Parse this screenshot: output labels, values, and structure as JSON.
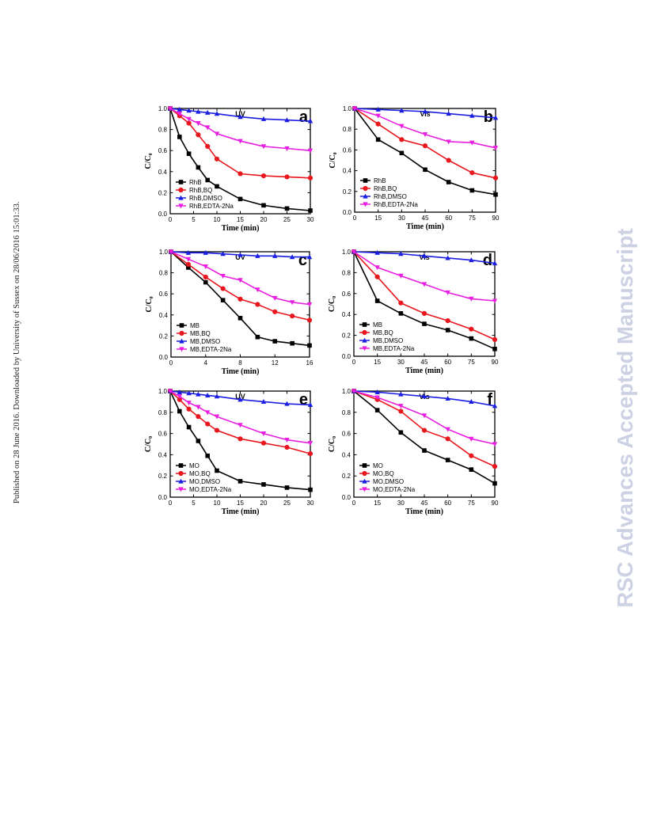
{
  "sidebar_note": "Published on 28 June 2016. Downloaded by University of Sussex on 28/06/2016 15:01:33.",
  "watermark": "RSC Advances Accepted Manuscript",
  "series_colors": [
    "#000000",
    "#e8161d",
    "#1a1ee0",
    "#e81fe0"
  ],
  "series_markers": [
    "square",
    "circle",
    "triangle-up",
    "triangle-down"
  ],
  "chart_data": [
    {
      "type": "line",
      "panel": "a",
      "mode": "UV",
      "xlabel": "Time (min)",
      "ylabel": "C/C₀",
      "xlim": [
        0,
        30
      ],
      "ylim": [
        0,
        1.0
      ],
      "xticks": [
        0,
        5,
        10,
        15,
        20,
        25,
        30
      ],
      "yticks": [
        0.0,
        0.2,
        0.4,
        0.6,
        0.8,
        1.0
      ],
      "legend_position": "bottom-left",
      "series": [
        {
          "name": "RhB",
          "x": [
            0,
            2,
            4,
            6,
            8,
            10,
            15,
            20,
            25,
            30
          ],
          "y": [
            1.0,
            0.73,
            0.57,
            0.44,
            0.32,
            0.26,
            0.14,
            0.08,
            0.05,
            0.03
          ]
        },
        {
          "name": "RhB,BQ",
          "x": [
            0,
            2,
            4,
            6,
            8,
            10,
            15,
            20,
            25,
            30
          ],
          "y": [
            1.0,
            0.93,
            0.86,
            0.75,
            0.64,
            0.52,
            0.38,
            0.36,
            0.35,
            0.34
          ]
        },
        {
          "name": "RhB,DMSO",
          "x": [
            0,
            2,
            4,
            6,
            8,
            10,
            15,
            20,
            25,
            30
          ],
          "y": [
            1.0,
            0.99,
            0.98,
            0.97,
            0.96,
            0.95,
            0.92,
            0.9,
            0.89,
            0.88
          ]
        },
        {
          "name": "RhB,EDTA-2Na",
          "x": [
            0,
            2,
            4,
            6,
            8,
            10,
            15,
            20,
            25,
            30
          ],
          "y": [
            1.0,
            0.95,
            0.9,
            0.86,
            0.82,
            0.76,
            0.69,
            0.64,
            0.62,
            0.6
          ]
        }
      ]
    },
    {
      "type": "line",
      "panel": "b",
      "mode": "Vis",
      "xlabel": "Time (min)",
      "ylabel": "C/C₀",
      "xlim": [
        0,
        90
      ],
      "ylim": [
        0,
        1.0
      ],
      "xticks": [
        0,
        15,
        30,
        45,
        60,
        75,
        90
      ],
      "yticks": [
        0.0,
        0.2,
        0.4,
        0.6,
        0.8,
        1.0
      ],
      "legend_position": "bottom-left",
      "series": [
        {
          "name": "RhB",
          "x": [
            0,
            15,
            30,
            45,
            60,
            75,
            90
          ],
          "y": [
            1.0,
            0.7,
            0.57,
            0.41,
            0.29,
            0.21,
            0.17
          ]
        },
        {
          "name": "RhB,BQ",
          "x": [
            0,
            15,
            30,
            45,
            60,
            75,
            90
          ],
          "y": [
            1.0,
            0.85,
            0.7,
            0.64,
            0.5,
            0.38,
            0.33
          ]
        },
        {
          "name": "RhB,DMSO",
          "x": [
            0,
            15,
            30,
            45,
            60,
            75,
            90
          ],
          "y": [
            1.0,
            0.99,
            0.98,
            0.97,
            0.95,
            0.93,
            0.91
          ]
        },
        {
          "name": "RhB,EDTA-2Na",
          "x": [
            0,
            15,
            30,
            45,
            60,
            75,
            90
          ],
          "y": [
            1.0,
            0.93,
            0.83,
            0.75,
            0.68,
            0.67,
            0.62
          ]
        }
      ]
    },
    {
      "type": "line",
      "panel": "c",
      "mode": "UV",
      "xlabel": "Time (min)",
      "ylabel": "C/C₀",
      "xlim": [
        0,
        16
      ],
      "ylim": [
        0,
        1.0
      ],
      "xticks": [
        0,
        4,
        8,
        12,
        16
      ],
      "yticks": [
        0.0,
        0.2,
        0.4,
        0.6,
        0.8,
        1.0
      ],
      "legend_position": "bottom-left",
      "series": [
        {
          "name": "MB",
          "x": [
            0,
            2,
            4,
            6,
            8,
            10,
            12,
            14,
            16
          ],
          "y": [
            1.0,
            0.85,
            0.71,
            0.54,
            0.37,
            0.19,
            0.15,
            0.13,
            0.11
          ]
        },
        {
          "name": "MB,BQ",
          "x": [
            0,
            2,
            4,
            6,
            8,
            10,
            12,
            14,
            16
          ],
          "y": [
            1.0,
            0.88,
            0.76,
            0.65,
            0.55,
            0.5,
            0.43,
            0.39,
            0.35
          ]
        },
        {
          "name": "MB,DMSO",
          "x": [
            0,
            2,
            4,
            6,
            8,
            10,
            12,
            14,
            16
          ],
          "y": [
            1.0,
            0.99,
            0.99,
            0.98,
            0.97,
            0.96,
            0.96,
            0.95,
            0.95
          ]
        },
        {
          "name": "MB,EDTA-2Na",
          "x": [
            0,
            2,
            4,
            6,
            8,
            10,
            12,
            14,
            16
          ],
          "y": [
            1.0,
            0.93,
            0.86,
            0.77,
            0.73,
            0.64,
            0.56,
            0.52,
            0.5
          ]
        }
      ]
    },
    {
      "type": "line",
      "panel": "d",
      "mode": "Vis",
      "xlabel": "Time (min)",
      "ylabel": "C/C₀",
      "xlim": [
        0,
        90
      ],
      "ylim": [
        0,
        1.0
      ],
      "xticks": [
        0,
        15,
        30,
        45,
        60,
        75,
        90
      ],
      "yticks": [
        0.0,
        0.2,
        0.4,
        0.6,
        0.8,
        1.0
      ],
      "legend_position": "bottom-left",
      "series": [
        {
          "name": "MB",
          "x": [
            0,
            15,
            30,
            45,
            60,
            75,
            90
          ],
          "y": [
            1.0,
            0.53,
            0.41,
            0.31,
            0.25,
            0.17,
            0.07
          ]
        },
        {
          "name": "MB,BQ",
          "x": [
            0,
            15,
            30,
            45,
            60,
            75,
            90
          ],
          "y": [
            1.0,
            0.76,
            0.51,
            0.41,
            0.34,
            0.26,
            0.16
          ]
        },
        {
          "name": "MB,DMSO",
          "x": [
            0,
            15,
            30,
            45,
            60,
            75,
            90
          ],
          "y": [
            1.0,
            0.99,
            0.98,
            0.96,
            0.94,
            0.92,
            0.89
          ]
        },
        {
          "name": "MB,EDTA-2Na",
          "x": [
            0,
            15,
            30,
            45,
            60,
            75,
            90
          ],
          "y": [
            1.0,
            0.85,
            0.77,
            0.69,
            0.61,
            0.55,
            0.53
          ]
        }
      ]
    },
    {
      "type": "line",
      "panel": "e",
      "mode": "UV",
      "xlabel": "Time (min)",
      "ylabel": "C/C₀",
      "xlim": [
        0,
        30
      ],
      "ylim": [
        0,
        1.0
      ],
      "xticks": [
        0,
        5,
        10,
        15,
        20,
        25,
        30
      ],
      "yticks": [
        0.0,
        0.2,
        0.4,
        0.6,
        0.8,
        1.0
      ],
      "legend_position": "bottom-left",
      "series": [
        {
          "name": "MO",
          "x": [
            0,
            2,
            4,
            6,
            8,
            10,
            15,
            20,
            25,
            30
          ],
          "y": [
            1.0,
            0.81,
            0.66,
            0.53,
            0.39,
            0.25,
            0.15,
            0.12,
            0.09,
            0.07
          ]
        },
        {
          "name": "MO,BQ",
          "x": [
            0,
            2,
            4,
            6,
            8,
            10,
            15,
            20,
            25,
            30
          ],
          "y": [
            1.0,
            0.92,
            0.83,
            0.76,
            0.69,
            0.63,
            0.55,
            0.51,
            0.47,
            0.41
          ]
        },
        {
          "name": "MO,DMSO",
          "x": [
            0,
            2,
            4,
            6,
            8,
            10,
            15,
            20,
            25,
            30
          ],
          "y": [
            1.0,
            0.99,
            0.98,
            0.97,
            0.96,
            0.95,
            0.92,
            0.9,
            0.88,
            0.87
          ]
        },
        {
          "name": "MO,EDTA-2Na",
          "x": [
            0,
            2,
            4,
            6,
            8,
            10,
            15,
            20,
            25,
            30
          ],
          "y": [
            1.0,
            0.95,
            0.89,
            0.85,
            0.8,
            0.76,
            0.68,
            0.6,
            0.54,
            0.51
          ]
        }
      ]
    },
    {
      "type": "line",
      "panel": "f",
      "mode": "Vis",
      "xlabel": "Time (min)",
      "ylabel": "C/C₀",
      "xlim": [
        0,
        90
      ],
      "ylim": [
        0,
        1.0
      ],
      "xticks": [
        0,
        15,
        30,
        45,
        60,
        75,
        90
      ],
      "yticks": [
        0.0,
        0.2,
        0.4,
        0.6,
        0.8,
        1.0
      ],
      "legend_position": "bottom-left",
      "series": [
        {
          "name": "MO",
          "x": [
            0,
            15,
            30,
            45,
            60,
            75,
            90
          ],
          "y": [
            1.0,
            0.82,
            0.61,
            0.44,
            0.35,
            0.26,
            0.13
          ]
        },
        {
          "name": "MO,BQ",
          "x": [
            0,
            15,
            30,
            45,
            60,
            75,
            90
          ],
          "y": [
            1.0,
            0.92,
            0.81,
            0.63,
            0.55,
            0.39,
            0.29
          ]
        },
        {
          "name": "MO,DMSO",
          "x": [
            0,
            15,
            30,
            45,
            60,
            75,
            90
          ],
          "y": [
            1.0,
            0.99,
            0.97,
            0.95,
            0.93,
            0.9,
            0.86
          ]
        },
        {
          "name": "MO,EDTA-2Na",
          "x": [
            0,
            15,
            30,
            45,
            60,
            75,
            90
          ],
          "y": [
            1.0,
            0.94,
            0.86,
            0.77,
            0.64,
            0.55,
            0.5
          ]
        }
      ]
    }
  ]
}
